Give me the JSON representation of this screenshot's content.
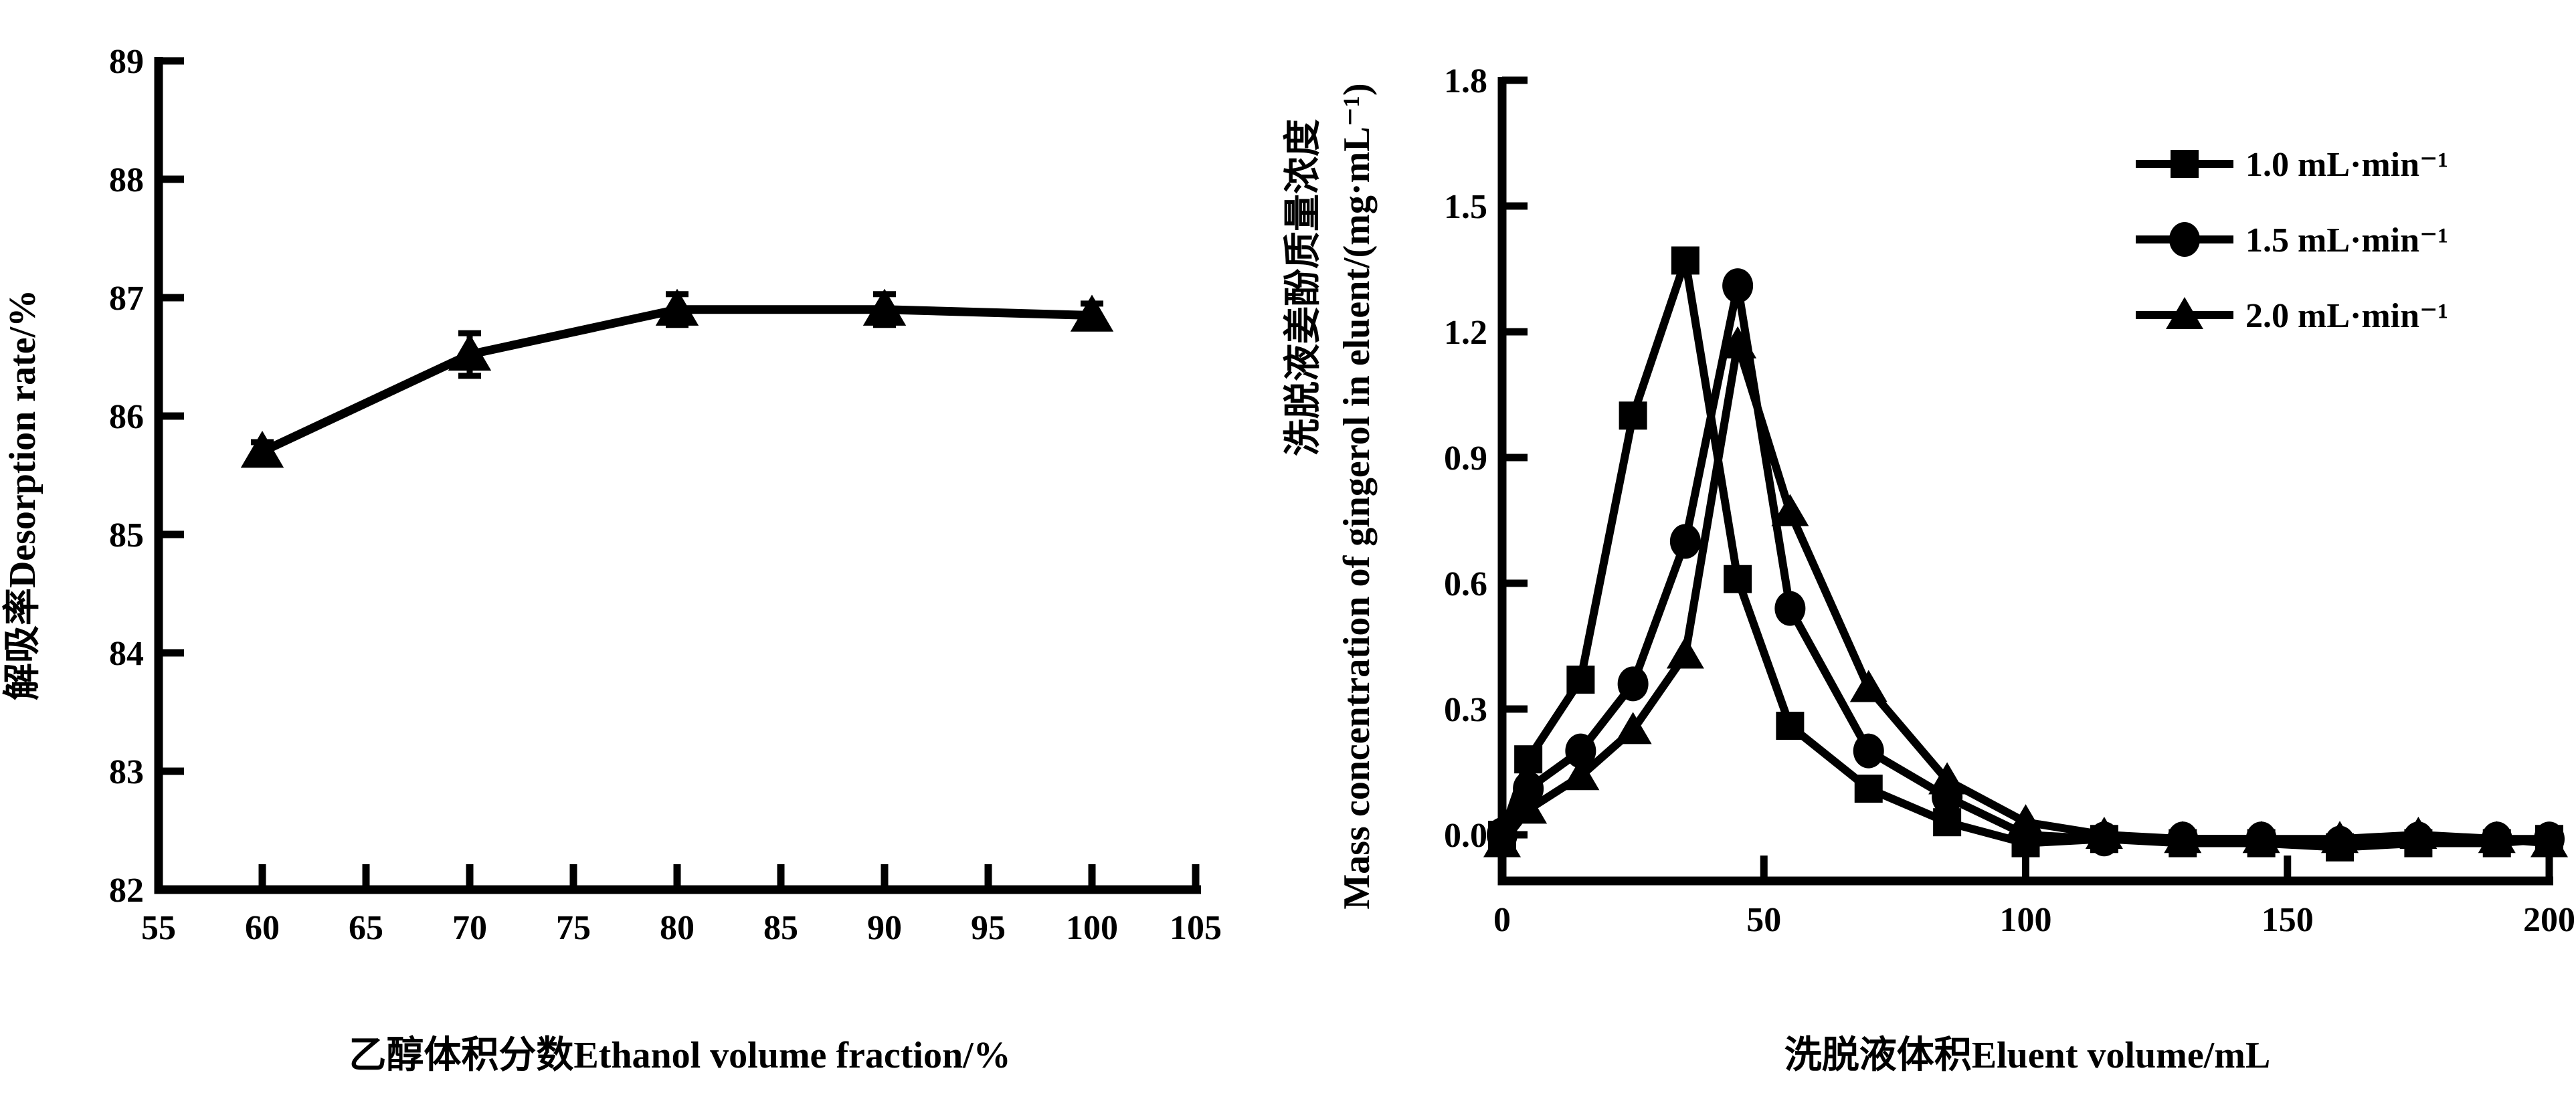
{
  "figure": {
    "background_color": "#ffffff",
    "ink_color": "#000000"
  },
  "chart_data": [
    {
      "type": "line",
      "title": "",
      "xlabel": "乙醇体积分数Ethanol volume fraction/%",
      "ylabel": "解吸率Desorption rate/%",
      "xlim": [
        55,
        105
      ],
      "ylim": [
        82,
        89
      ],
      "xtick_labels": [
        "55",
        "60",
        "65",
        "70",
        "75",
        "80",
        "85",
        "90",
        "95",
        "100",
        "105"
      ],
      "ytick_labels": [
        "82",
        "83",
        "84",
        "85",
        "86",
        "87",
        "88",
        "89"
      ],
      "grid": false,
      "legend_position": "none",
      "series": [
        {
          "name": "Desorption rate",
          "marker": "triangle",
          "x": [
            60,
            70,
            80,
            90,
            100
          ],
          "y": [
            85.7,
            86.52,
            86.9,
            86.9,
            86.85
          ],
          "yerr": [
            0.08,
            0.18,
            0.13,
            0.13,
            0.1
          ]
        }
      ]
    },
    {
      "type": "line",
      "title": "",
      "xlabel": "洗脱液体积Eluent volume/mL",
      "ylabel_line1": "洗脱液姜酚质量浓度",
      "ylabel_line2": "Mass concentration of gingerol in eluent/(mg·mL⁻¹)",
      "xlim": [
        0,
        200
      ],
      "ylim": [
        -0.11,
        1.8
      ],
      "xtick_labels": [
        "0",
        "50",
        "100",
        "150",
        "200"
      ],
      "ytick_labels": [
        "0.0",
        "0.3",
        "0.6",
        "0.9",
        "1.2",
        "1.5",
        "1.8"
      ],
      "grid": false,
      "legend_position": "top-right",
      "x": [
        0,
        5,
        15,
        25,
        35,
        45,
        55,
        70,
        85,
        100,
        115,
        130,
        145,
        160,
        175,
        190,
        200
      ],
      "series": [
        {
          "name": "1.0 mL·min⁻¹",
          "marker": "square",
          "y": [
            0.0,
            0.18,
            0.37,
            1.0,
            1.37,
            0.61,
            0.26,
            0.11,
            0.03,
            -0.02,
            -0.01,
            -0.02,
            -0.02,
            -0.03,
            -0.02,
            -0.02,
            -0.01
          ]
        },
        {
          "name": "1.5 mL·min⁻¹",
          "marker": "circle",
          "y": [
            0.0,
            0.11,
            0.2,
            0.36,
            0.7,
            1.31,
            0.54,
            0.2,
            0.09,
            0.0,
            -0.01,
            -0.01,
            -0.01,
            -0.02,
            -0.01,
            -0.01,
            -0.01
          ]
        },
        {
          "name": "2.0 mL·min⁻¹",
          "marker": "triangle",
          "y": [
            -0.02,
            0.06,
            0.14,
            0.25,
            0.43,
            1.17,
            0.77,
            0.35,
            0.13,
            0.03,
            0.0,
            -0.01,
            -0.01,
            -0.01,
            0.0,
            -0.01,
            -0.02
          ]
        }
      ]
    }
  ]
}
